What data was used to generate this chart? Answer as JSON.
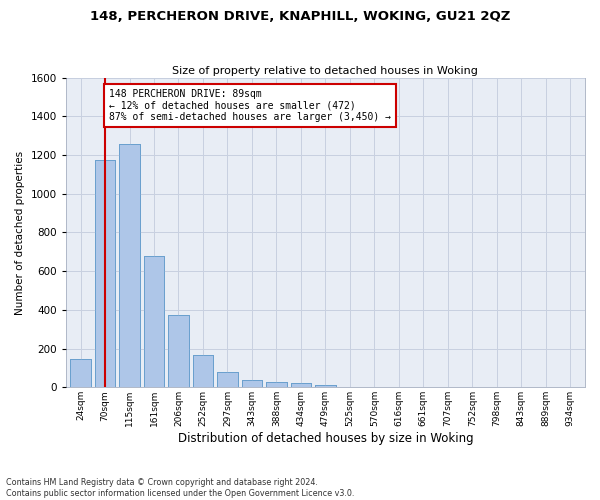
{
  "title1": "148, PERCHERON DRIVE, KNAPHILL, WOKING, GU21 2QZ",
  "title2": "Size of property relative to detached houses in Woking",
  "xlabel": "Distribution of detached houses by size in Woking",
  "ylabel": "Number of detached properties",
  "bin_labels": [
    "24sqm",
    "70sqm",
    "115sqm",
    "161sqm",
    "206sqm",
    "252sqm",
    "297sqm",
    "343sqm",
    "388sqm",
    "434sqm",
    "479sqm",
    "525sqm",
    "570sqm",
    "616sqm",
    "661sqm",
    "707sqm",
    "752sqm",
    "798sqm",
    "843sqm",
    "889sqm",
    "934sqm"
  ],
  "bar_values": [
    148,
    1175,
    1258,
    680,
    375,
    168,
    80,
    38,
    28,
    20,
    12,
    0,
    0,
    0,
    0,
    0,
    0,
    0,
    0,
    0,
    0
  ],
  "bar_color": "#aec6e8",
  "bar_edge_color": "#5a96c8",
  "grid_color": "#c8d0e0",
  "background_color": "#e8edf5",
  "vline_color": "#cc0000",
  "annotation_text": "148 PERCHERON DRIVE: 89sqm\n← 12% of detached houses are smaller (472)\n87% of semi-detached houses are larger (3,450) →",
  "annotation_box_color": "#ffffff",
  "annotation_box_edge": "#cc0000",
  "ylim": [
    0,
    1600
  ],
  "yticks": [
    0,
    200,
    400,
    600,
    800,
    1000,
    1200,
    1400,
    1600
  ],
  "footnote": "Contains HM Land Registry data © Crown copyright and database right 2024.\nContains public sector information licensed under the Open Government Licence v3.0."
}
